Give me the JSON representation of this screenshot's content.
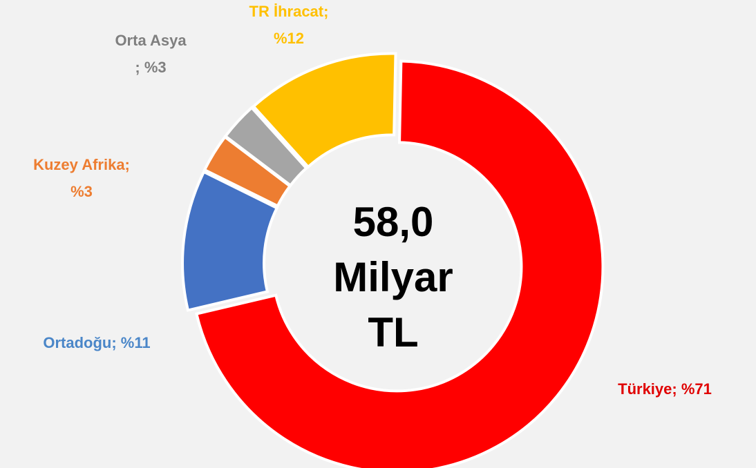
{
  "chart_data": {
    "type": "donut",
    "values": [
      71,
      11,
      3,
      3,
      12
    ],
    "value_labels": [
      [
        "Türkiye; %71"
      ],
      [
        "Ortadoğu; %11"
      ],
      [
        "Kuzey Afrika;",
        "%3"
      ],
      [
        "Orta Asya",
        "; %3"
      ],
      [
        "TR İhracat;",
        "%12"
      ]
    ],
    "colors": [
      "#ff0000",
      "#4472c4",
      "#ed7d31",
      "#a5a5a5",
      "#ffc000"
    ],
    "label_colors": [
      "#e00000",
      "#4a86c8",
      "#ed7d31",
      "#7f7f7f",
      "#ffc000"
    ],
    "center_label": [
      "58,0",
      "Milyar",
      "TL"
    ]
  }
}
